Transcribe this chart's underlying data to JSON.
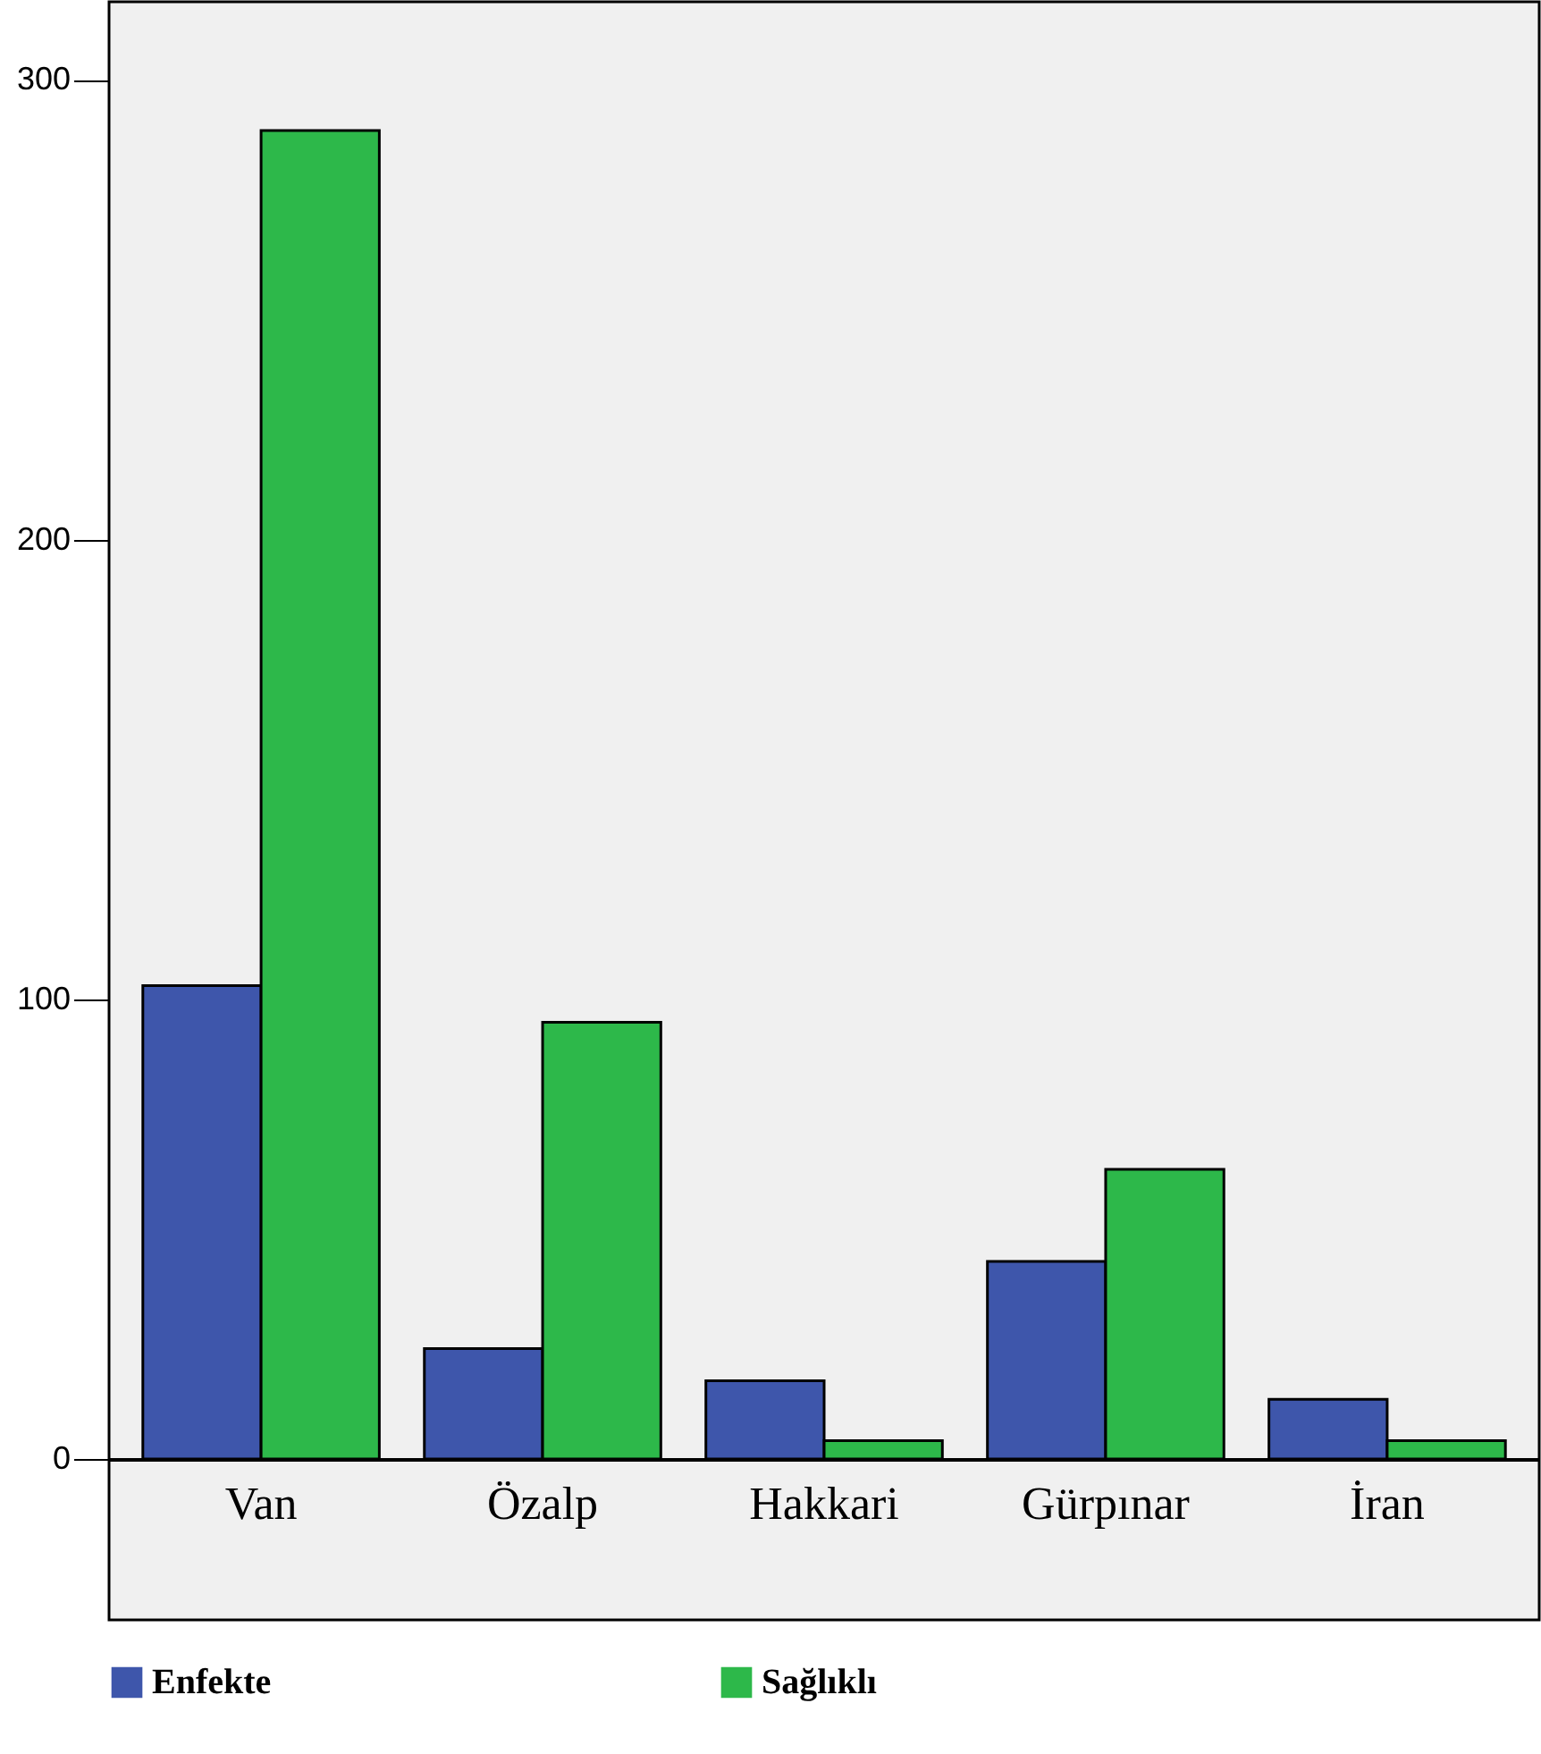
{
  "chart_data": {
    "type": "bar",
    "categories": [
      "Van",
      "Özalp",
      "Hakkari",
      "Gürpınar",
      "İran"
    ],
    "series": [
      {
        "name": "Enfekte",
        "color": "#3e56ab",
        "values": [
          103,
          24,
          17,
          43,
          13
        ]
      },
      {
        "name": "Sağlıklı",
        "color": "#2db84a",
        "values": [
          289,
          95,
          4,
          63,
          4
        ]
      }
    ],
    "ylim": [
      -35,
      317
    ],
    "yticks": [
      0,
      100,
      200,
      300
    ],
    "grid": false,
    "legend": "bottom"
  }
}
